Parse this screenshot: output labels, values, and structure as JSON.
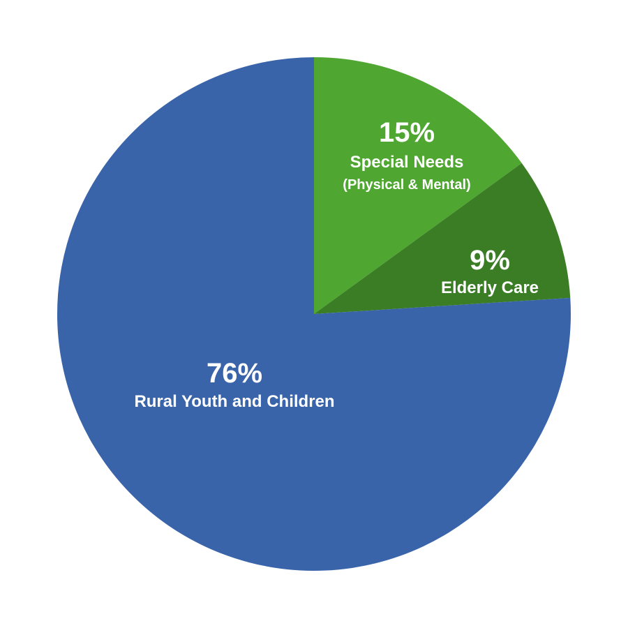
{
  "chart_data": {
    "type": "pie",
    "slices": [
      {
        "percent_label": "76%",
        "label": "Rural Youth and Children",
        "sublabel": "",
        "value": 76,
        "color": "#3a64aa"
      },
      {
        "percent_label": "15%",
        "label": "Special Needs",
        "sublabel": "(Physical & Mental)",
        "value": 15,
        "color": "#4fa732"
      },
      {
        "percent_label": "9%",
        "label": "Elderly Care",
        "sublabel": "",
        "value": 9,
        "color": "#3a7d25"
      }
    ]
  }
}
